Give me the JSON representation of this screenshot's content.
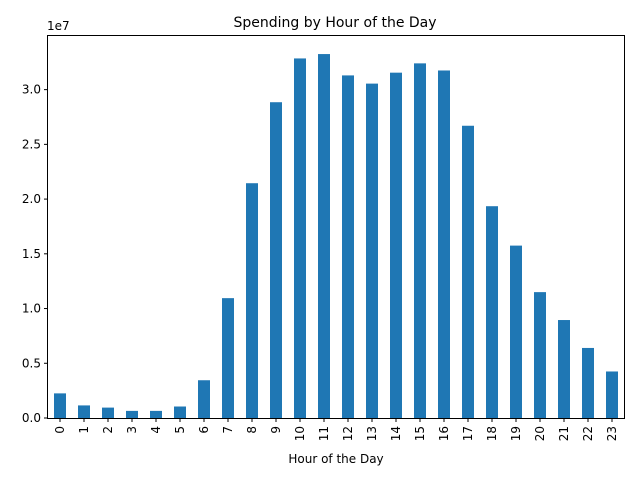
{
  "chart_data": {
    "type": "bar",
    "title": "Spending by Hour of the Day",
    "xlabel": "Hour of the Day",
    "ylabel": "",
    "y_offset_label": "1e7",
    "y_scale": 10000000,
    "categories": [
      "0",
      "1",
      "2",
      "3",
      "4",
      "5",
      "6",
      "7",
      "8",
      "9",
      "10",
      "11",
      "12",
      "13",
      "14",
      "15",
      "16",
      "17",
      "18",
      "19",
      "20",
      "21",
      "22",
      "23"
    ],
    "values": [
      2250000,
      1150000,
      950000,
      650000,
      650000,
      1050000,
      3450000,
      10950000,
      21450000,
      28850000,
      32850000,
      33250000,
      31300000,
      30550000,
      31550000,
      32400000,
      31750000,
      26700000,
      19350000,
      15750000,
      11500000,
      8950000,
      6400000,
      4250000
    ],
    "ylim": [
      0,
      34900000
    ],
    "yticks": [
      0,
      5000000,
      10000000,
      15000000,
      20000000,
      25000000,
      30000000
    ],
    "ytick_labels": [
      "0.0",
      "0.5",
      "1.0",
      "1.5",
      "2.0",
      "2.5",
      "3.0"
    ],
    "bar_color": "#1f77b4",
    "grid": false,
    "legend": "none"
  }
}
